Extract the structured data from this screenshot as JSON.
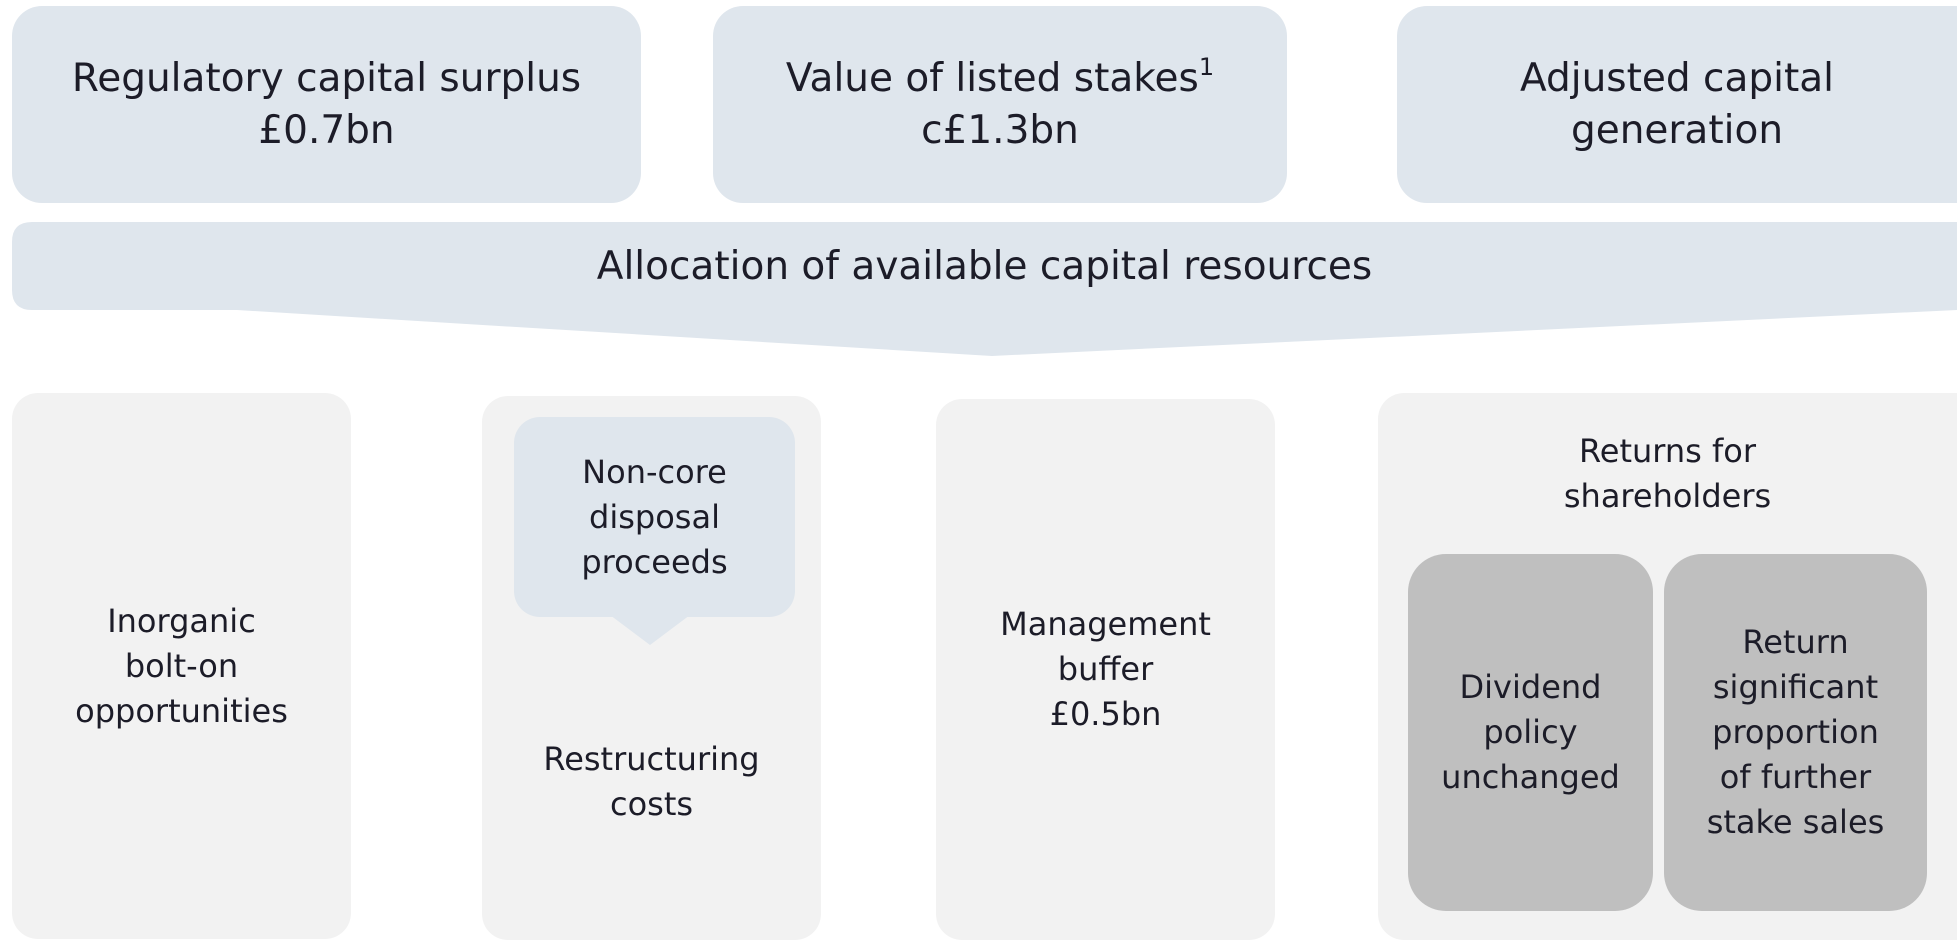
{
  "top_boxes": [
    {
      "lines": [
        "Regulatory capital surplus",
        "£0.7bn"
      ]
    },
    {
      "lines": [
        "Value of listed stakes",
        "c£1.3bn"
      ],
      "footnote": "1"
    },
    {
      "lines": [
        "Adjusted capital",
        "generation"
      ]
    }
  ],
  "banner": {
    "label": "Allocation of available capital resources"
  },
  "bottom_boxes": [
    {
      "lines": [
        "Inorganic",
        "bolt-on",
        "opportunities"
      ]
    },
    {
      "callout": [
        "Non-core",
        "disposal",
        "proceeds"
      ],
      "lines": [
        "Restructuring",
        "costs"
      ]
    },
    {
      "lines": [
        "Management",
        "buffer",
        "£0.5bn"
      ]
    },
    {
      "title": [
        "Returns for",
        "shareholders"
      ],
      "items": [
        {
          "lines": [
            "Dividend",
            "policy",
            "unchanged"
          ]
        },
        {
          "lines": [
            "Return",
            "significant",
            "proportion",
            "of further",
            "stake sales"
          ]
        }
      ]
    }
  ]
}
